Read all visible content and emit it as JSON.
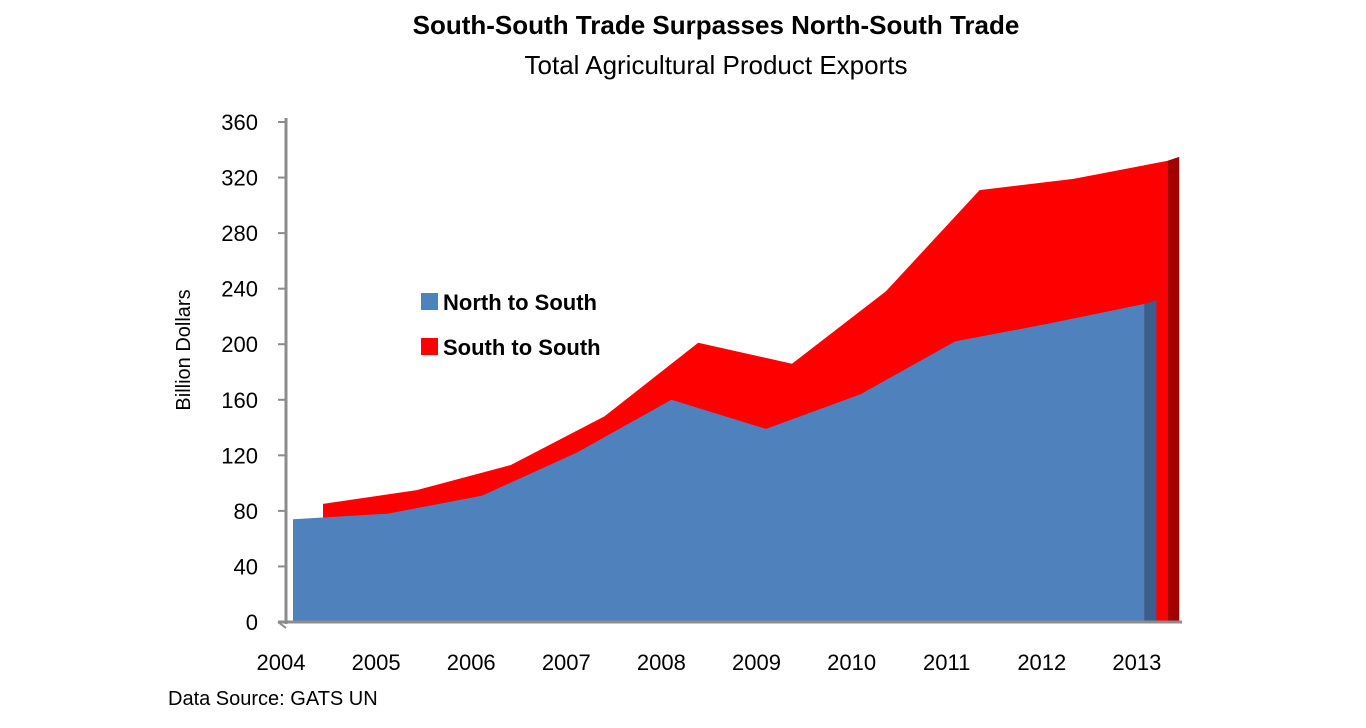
{
  "chart_data": {
    "type": "area",
    "title": "South-South Trade Surpasses North-South Trade",
    "subtitle": "Total Agricultural Product Exports",
    "xlabel": "",
    "ylabel": "Billion Dollars",
    "categories": [
      "2004",
      "2005",
      "2006",
      "2007",
      "2008",
      "2009",
      "2010",
      "2011",
      "2012",
      "2013"
    ],
    "y_ticks": [
      "0",
      "40",
      "80",
      "120",
      "160",
      "200",
      "240",
      "280",
      "320",
      "360"
    ],
    "ylim": [
      0,
      360
    ],
    "stacked": true,
    "series": [
      {
        "name": "North to South",
        "color": "#4f81bd",
        "values": [
          74,
          78,
          91,
          122,
          160,
          139,
          164,
          202,
          215,
          229
        ]
      },
      {
        "name": "South to South",
        "color": "#ff0000",
        "values": [
          11,
          17,
          22,
          26,
          41,
          47,
          74,
          109,
          104,
          103
        ]
      }
    ],
    "legend_position": "upper-left-inside",
    "grid": false
  },
  "source_note": "Data Source: GATS UN"
}
